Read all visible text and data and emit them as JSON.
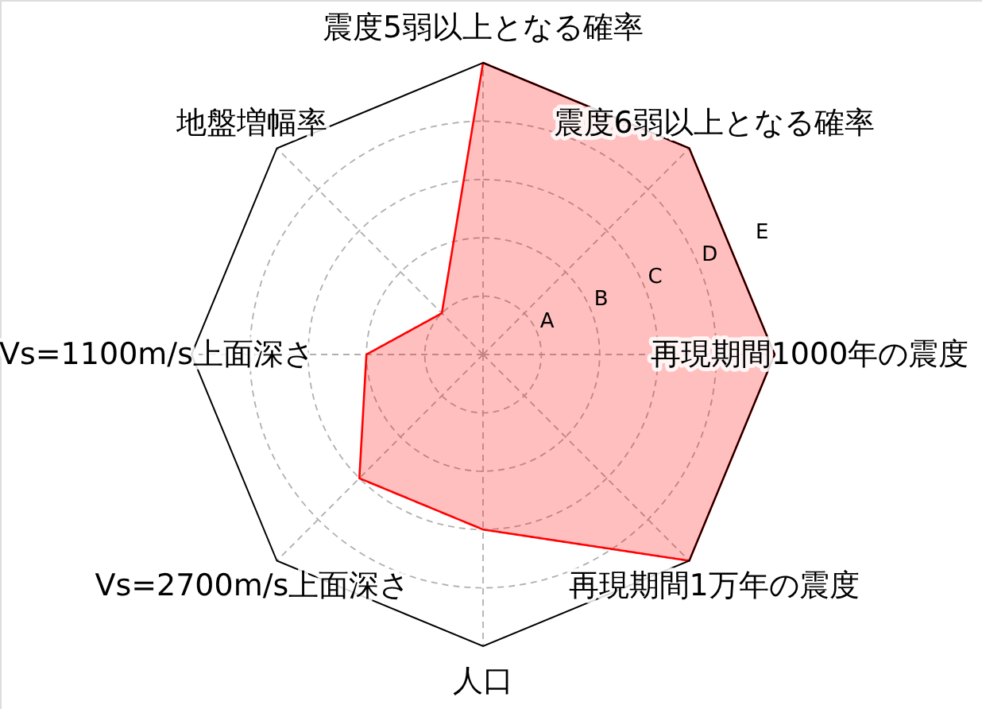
{
  "chart_data": {
    "type": "radar",
    "categories": [
      "震度5弱以上となる確率",
      "震度6弱以上となる確率",
      "再現期間1000年の震度",
      "再現期間1万年の震度",
      "人口",
      "Vs=2700m/s上面深さ",
      "Vs=1100m/s上面深さ",
      "地盤増幅率"
    ],
    "series": [
      {
        "color": "#ff0000",
        "values": [
          5,
          5,
          5,
          5,
          3,
          3,
          2,
          1
        ]
      }
    ],
    "ylim": [
      0,
      5
    ],
    "yticks": [
      {
        "value": 1,
        "label": "A"
      },
      {
        "value": 2,
        "label": "B"
      },
      {
        "value": 3,
        "label": "C"
      },
      {
        "value": 4,
        "label": "D"
      },
      {
        "value": 5,
        "label": "E"
      }
    ],
    "grid": true
  }
}
